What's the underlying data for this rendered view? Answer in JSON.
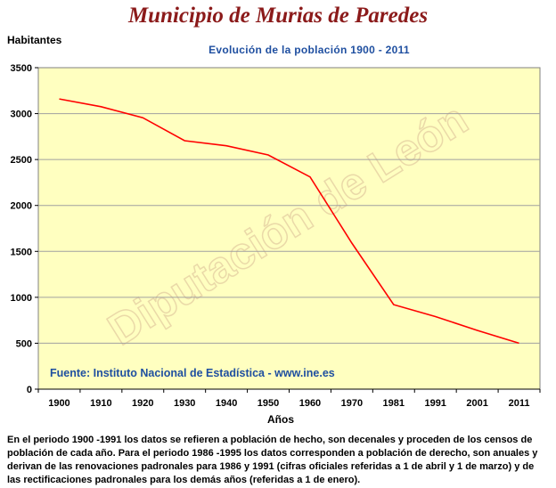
{
  "header": {
    "title": "Municipio de Murias de Paredes",
    "y_axis_label": "Habitantes",
    "subtitle": "Evolución de la población 1900 - 2011"
  },
  "chart_data": {
    "type": "line",
    "title": "Evolución de la población 1900 - 2011",
    "xlabel": "Años",
    "ylabel": "Habitantes",
    "categories": [
      "1900",
      "1910",
      "1920",
      "1930",
      "1940",
      "1950",
      "1960",
      "1970",
      "1981",
      "1991",
      "2001",
      "2011"
    ],
    "series": [
      {
        "values": [
          3160,
          3075,
          2955,
          2705,
          2650,
          2550,
          2310,
          1590,
          920,
          790,
          640,
          500
        ],
        "color": "#ff0000"
      }
    ],
    "ylim": [
      0,
      3500
    ],
    "yticks": [
      0,
      500,
      1000,
      1500,
      2000,
      2500,
      3000,
      3500
    ],
    "grid": true,
    "plot_background": "#ffffc0",
    "source_text": "Fuente: Instituto Nacional de Estadística - www.ine.es",
    "watermark": "Diputación de León"
  },
  "footer": {
    "note": "En el periodo 1900 -1991 los datos se refieren a población de hecho, son decenales y proceden de los censos de población de cada año. Para el periodo 1986 -1995 los datos corresponden a población de derecho, son anuales y derivan de las renovaciones padronales para 1986 y 1991 (cifras oficiales referidas a 1 de abril y 1 de marzo) y de las rectificaciones padronales para los demás años (referidas a 1 de enero)."
  }
}
